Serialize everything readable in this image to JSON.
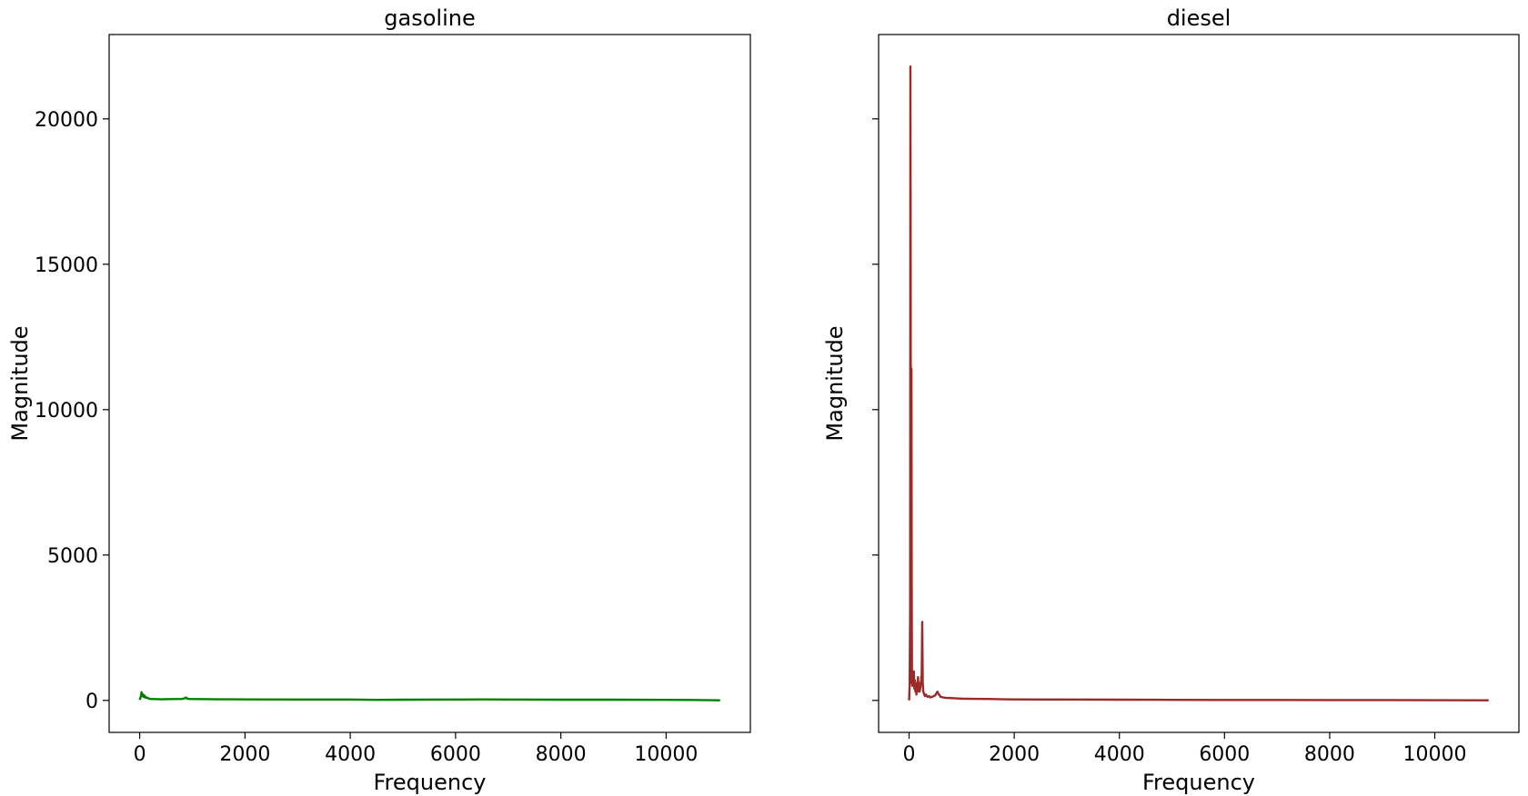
{
  "chart_data": [
    {
      "type": "line",
      "title": "gasoline",
      "xlabel": "Frequency",
      "ylabel": "Magnitude",
      "xlim": [
        -580,
        11600
      ],
      "ylim": [
        -1100,
        22900
      ],
      "xticks": [
        0,
        2000,
        4000,
        6000,
        8000,
        10000
      ],
      "yticks": [
        0,
        5000,
        10000,
        15000,
        20000
      ],
      "ytick_labels_visible": true,
      "grid": false,
      "line_color": "#008000",
      "series": [
        {
          "x": [
            0,
            20,
            35,
            50,
            60,
            75,
            90,
            110,
            130,
            160,
            200,
            300,
            400,
            600,
            800,
            850,
            880,
            900,
            950,
            1100,
            1500,
            2000,
            3000,
            4000,
            4500,
            5000,
            6000,
            6500,
            7000,
            8000,
            9000,
            10000,
            10500,
            11025
          ],
          "values": [
            20,
            120,
            280,
            150,
            210,
            120,
            170,
            90,
            110,
            70,
            50,
            45,
            40,
            45,
            50,
            70,
            100,
            60,
            50,
            45,
            40,
            35,
            30,
            30,
            20,
            25,
            30,
            35,
            30,
            25,
            25,
            20,
            15,
            5
          ]
        }
      ]
    },
    {
      "type": "line",
      "title": "diesel",
      "xlabel": "Frequency",
      "ylabel": "Magnitude",
      "xlim": [
        -580,
        11600
      ],
      "ylim": [
        -1100,
        22900
      ],
      "xticks": [
        0,
        2000,
        4000,
        6000,
        8000,
        10000
      ],
      "yticks": [
        0,
        5000,
        10000,
        15000,
        20000
      ],
      "ytick_labels_visible": false,
      "grid": false,
      "line_color": "#9b2a2a",
      "series": [
        {
          "x": [
            0,
            10,
            20,
            25,
            30,
            35,
            40,
            45,
            50,
            55,
            60,
            70,
            80,
            90,
            100,
            110,
            120,
            130,
            140,
            150,
            160,
            170,
            180,
            190,
            200,
            210,
            220,
            230,
            240,
            250,
            260,
            270,
            280,
            290,
            300,
            320,
            350,
            380,
            400,
            450,
            500,
            520,
            540,
            560,
            580,
            600,
            650,
            700,
            800,
            900,
            1000,
            1200,
            1500,
            1800,
            2000,
            2500,
            3000,
            4000,
            5000,
            6000,
            7000,
            8000,
            9000,
            10000,
            11025
          ],
          "values": [
            0,
            500,
            3000,
            21800,
            15000,
            600,
            2500,
            11400,
            4000,
            800,
            500,
            900,
            600,
            1000,
            400,
            700,
            300,
            600,
            200,
            500,
            300,
            800,
            350,
            600,
            300,
            400,
            500,
            700,
            900,
            2700,
            600,
            300,
            250,
            200,
            150,
            200,
            120,
            150,
            100,
            130,
            180,
            250,
            300,
            220,
            180,
            120,
            100,
            90,
            80,
            70,
            60,
            55,
            50,
            40,
            35,
            30,
            30,
            25,
            20,
            15,
            15,
            12,
            10,
            8,
            5
          ]
        }
      ]
    }
  ]
}
